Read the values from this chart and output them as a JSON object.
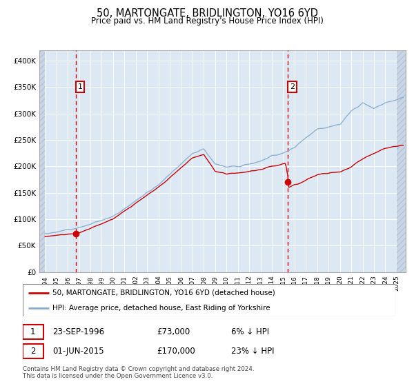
{
  "title": "50, MARTONGATE, BRIDLINGTON, YO16 6YD",
  "subtitle": "Price paid vs. HM Land Registry's House Price Index (HPI)",
  "background_color": "#dce9f5",
  "plot_bg_color": "#dce9f5",
  "grid_color": "#ffffff",
  "red_line_color": "#cc0000",
  "blue_line_color": "#88aacc",
  "marker1_date": 1996.73,
  "marker1_value": 73000,
  "marker2_date": 2015.42,
  "marker2_value": 170000,
  "vline1_color": "#cc0000",
  "vline2_color": "#cc0000",
  "ylim": [
    0,
    420000
  ],
  "xlim": [
    1993.5,
    2025.8
  ],
  "yticks": [
    0,
    50000,
    100000,
    150000,
    200000,
    250000,
    300000,
    350000,
    400000
  ],
  "ytick_labels": [
    "£0",
    "£50K",
    "£100K",
    "£150K",
    "£200K",
    "£250K",
    "£300K",
    "£350K",
    "£400K"
  ],
  "xtick_years": [
    1994,
    1995,
    1996,
    1997,
    1998,
    1999,
    2000,
    2001,
    2002,
    2003,
    2004,
    2005,
    2006,
    2007,
    2008,
    2009,
    2010,
    2011,
    2012,
    2013,
    2014,
    2015,
    2016,
    2017,
    2018,
    2019,
    2020,
    2021,
    2022,
    2023,
    2024,
    2025
  ],
  "legend_red_label": "50, MARTONGATE, BRIDLINGTON, YO16 6YD (detached house)",
  "legend_blue_label": "HPI: Average price, detached house, East Riding of Yorkshire",
  "sale1_label": "1",
  "sale1_date": "23-SEP-1996",
  "sale1_price": "£73,000",
  "sale1_rel": "6% ↓ HPI",
  "sale2_label": "2",
  "sale2_date": "01-JUN-2015",
  "sale2_price": "£170,000",
  "sale2_rel": "23% ↓ HPI",
  "footer": "Contains HM Land Registry data © Crown copyright and database right 2024.\nThis data is licensed under the Open Government Licence v3.0.",
  "hatch_left_end": 1994.0,
  "hatch_right_start": 2025.0
}
